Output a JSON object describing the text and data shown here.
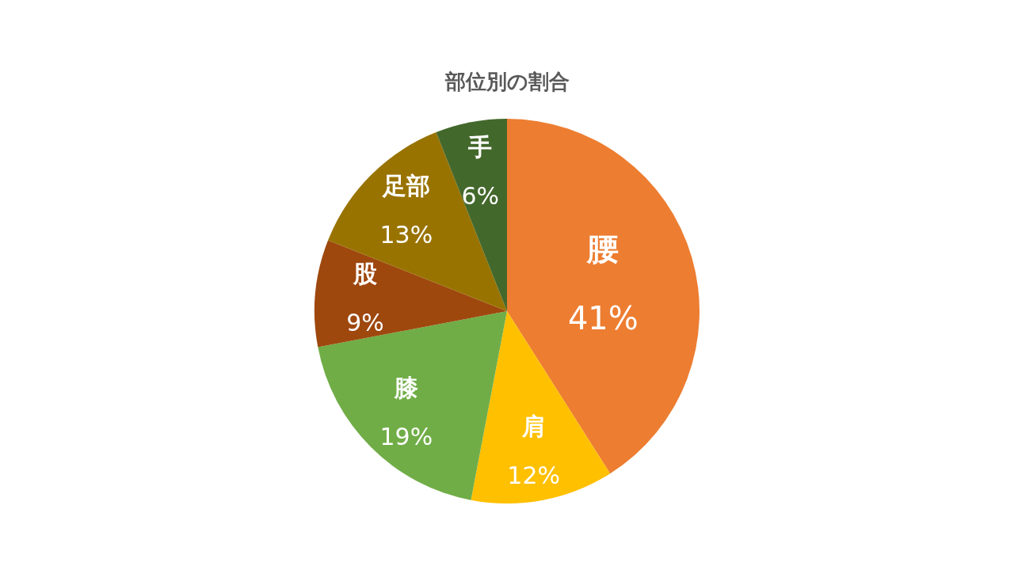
{
  "chart_data": {
    "type": "pie",
    "title": "部位別の割合",
    "categories": [
      "腰",
      "肩",
      "膝",
      "股",
      "足部",
      "手"
    ],
    "values": [
      41,
      12,
      19,
      9,
      13,
      6
    ],
    "value_labels": [
      "41%",
      "12%",
      "19%",
      "9%",
      "13%",
      "6%"
    ],
    "colors": [
      "#ed7d31",
      "#ffc000",
      "#70ad47",
      "#9e480e",
      "#997300",
      "#43682b"
    ]
  }
}
